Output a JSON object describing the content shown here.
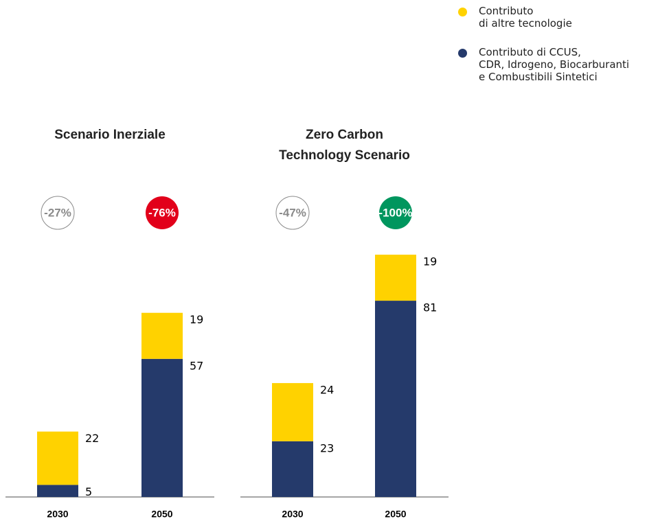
{
  "chart_data": [
    {
      "type": "stacked-bar",
      "title": "Scenario Inerziale",
      "categories": [
        "2030",
        "2050"
      ],
      "series": [
        {
          "name": "Contributo di CCUS,\nCDR, Idrogeno, Biocarburanti\ne Combustibili Sintetici",
          "color": "#253a6b",
          "values": [
            5,
            57
          ]
        },
        {
          "name": "Contributo\ndi altre tecnologie",
          "color": "#ffd200",
          "values": [
            22,
            19
          ]
        }
      ],
      "annotations": [
        {
          "text": "-27%",
          "color": "#8a8a8a",
          "filled": false
        },
        {
          "text": "-76%",
          "color": "#e2001a",
          "filled": true
        }
      ]
    },
    {
      "type": "stacked-bar",
      "title": "Zero Carbon\nTechnology Scenario",
      "categories": [
        "2030",
        "2050"
      ],
      "series": [
        {
          "color": "#253a6b",
          "values": [
            23,
            81
          ]
        },
        {
          "color": "#ffd200",
          "values": [
            24,
            19
          ]
        }
      ],
      "annotations": [
        {
          "text": "-47%",
          "color": "#8a8a8a",
          "filled": false
        },
        {
          "text": "-100%",
          "color": "#00965e",
          "filled": true
        }
      ]
    }
  ]
}
